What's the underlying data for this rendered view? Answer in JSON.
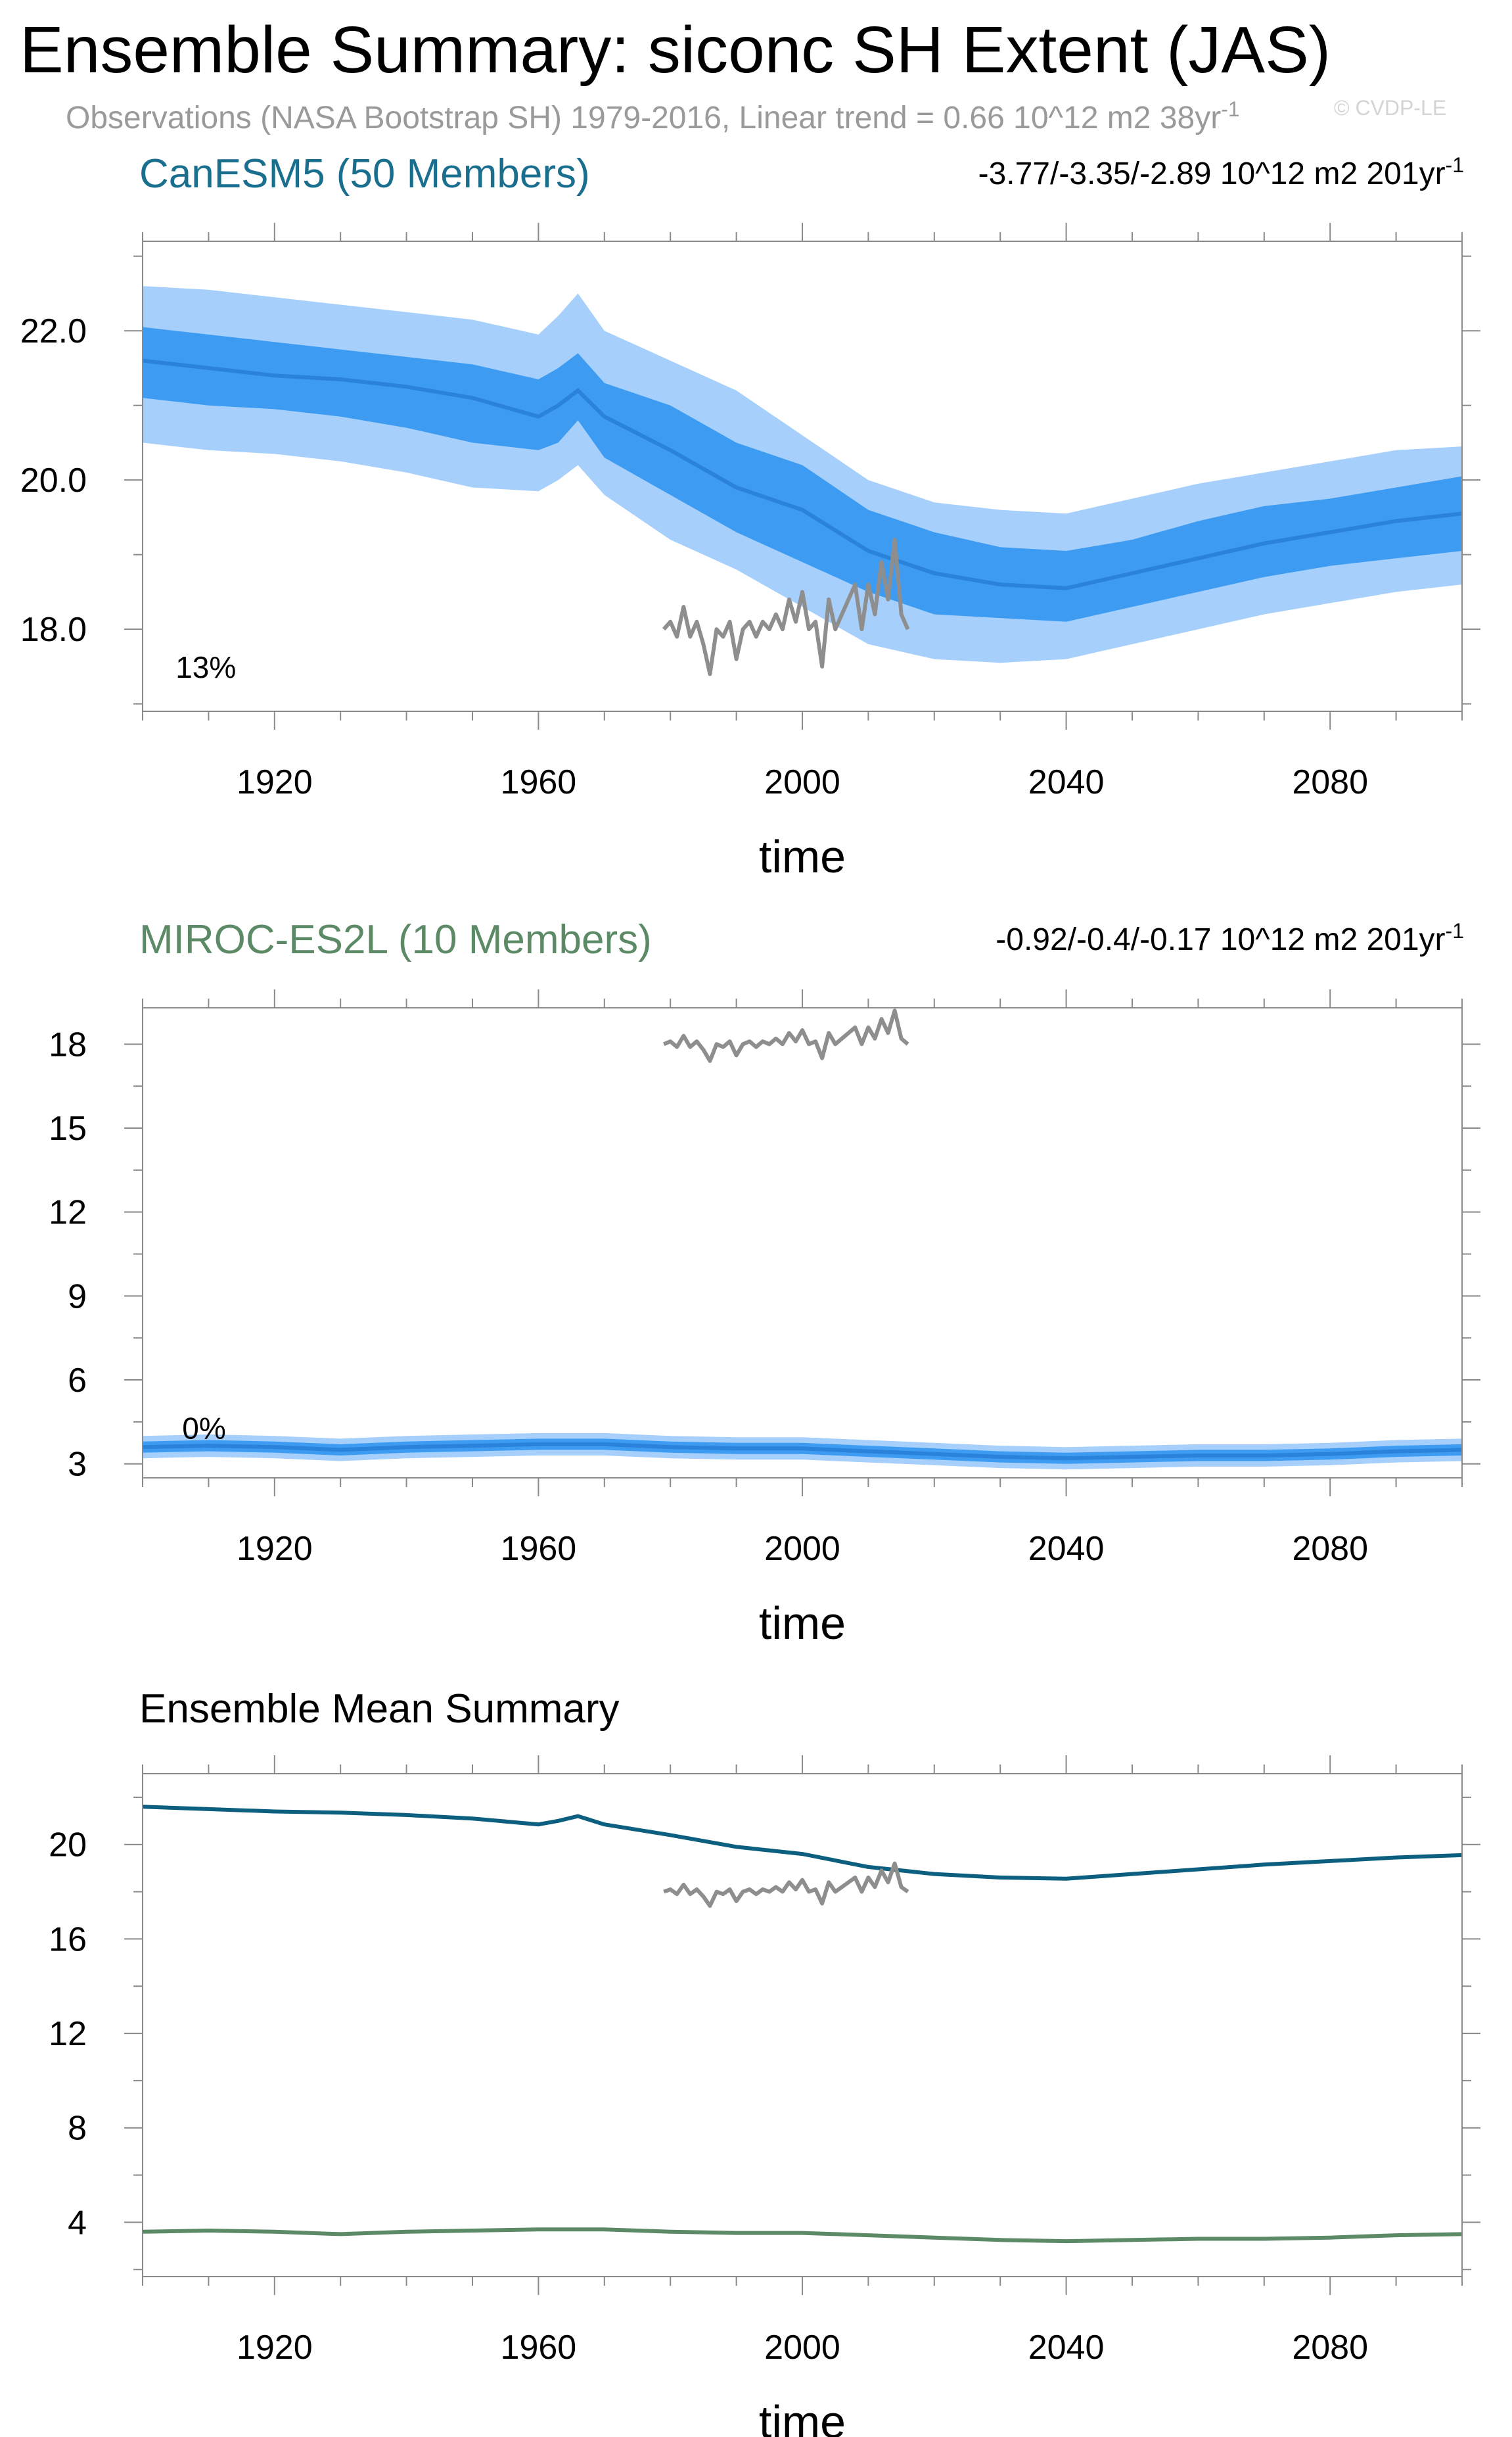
{
  "title": "Ensemble Summary: siconc SH Extent (JAS)",
  "subtitle": "Observations (NASA Bootstrap SH) 1979-2016, Linear trend = 0.66 10^12 m2 38yr",
  "subtitle_sup": "-1",
  "watermark": "© CVDP-LE",
  "colors": {
    "canesm5_title": "#1a6e8e",
    "miroc_title": "#5d8a66",
    "band_outer": "#a6d0fb",
    "band_inner": "#3d9cf2",
    "member_mean": "#2a82d9",
    "obs": "#8e8e8e",
    "canesm5_mean": "#0d5f7f",
    "miroc_mean": "#5d8a66"
  },
  "chart_data": [
    {
      "id": "canesm5",
      "type": "area",
      "title": "CanESM5 (50 Members)",
      "trend_label": "-3.77/-3.35/-2.89 10^12 m2 201yr",
      "trend_sup": "-1",
      "percent_label": "13%",
      "xlabel": "time",
      "ylabel": "",
      "xlim": [
        1900,
        2100
      ],
      "ylim": [
        16.9,
        23.2
      ],
      "x_ticks": [
        1920,
        1960,
        2000,
        2040,
        2080
      ],
      "y_ticks": [
        18.0,
        20.0,
        22.0
      ],
      "y_tick_labels": [
        "18.0",
        "20.0",
        "22.0"
      ],
      "ensemble_mean": {
        "x": [
          1900,
          1910,
          1920,
          1930,
          1940,
          1950,
          1960,
          1963,
          1966,
          1970,
          1980,
          1990,
          2000,
          2010,
          2020,
          2030,
          2040,
          2050,
          2060,
          2070,
          2080,
          2090,
          2100
        ],
        "values": [
          21.6,
          21.5,
          21.4,
          21.35,
          21.25,
          21.1,
          20.85,
          21.0,
          21.2,
          20.85,
          20.4,
          19.9,
          19.6,
          19.05,
          18.75,
          18.6,
          18.55,
          18.75,
          18.95,
          19.15,
          19.3,
          19.45,
          19.55
        ]
      },
      "spread_inner": {
        "x": [
          1900,
          1910,
          1920,
          1930,
          1940,
          1950,
          1960,
          1963,
          1966,
          1970,
          1980,
          1990,
          2000,
          2010,
          2020,
          2030,
          2040,
          2050,
          2060,
          2070,
          2080,
          2090,
          2100
        ],
        "lower": [
          21.1,
          21.0,
          20.95,
          20.85,
          20.7,
          20.5,
          20.4,
          20.5,
          20.8,
          20.3,
          19.8,
          19.3,
          18.9,
          18.5,
          18.2,
          18.15,
          18.1,
          18.3,
          18.5,
          18.7,
          18.85,
          18.95,
          19.05
        ],
        "upper": [
          22.05,
          21.95,
          21.85,
          21.75,
          21.65,
          21.55,
          21.35,
          21.5,
          21.7,
          21.3,
          21.0,
          20.5,
          20.2,
          19.6,
          19.3,
          19.1,
          19.05,
          19.2,
          19.45,
          19.65,
          19.75,
          19.9,
          20.05
        ]
      },
      "spread_outer": {
        "x": [
          1900,
          1910,
          1920,
          1930,
          1940,
          1950,
          1960,
          1963,
          1966,
          1970,
          1980,
          1990,
          2000,
          2010,
          2020,
          2030,
          2040,
          2050,
          2060,
          2070,
          2080,
          2090,
          2100
        ],
        "lower": [
          20.5,
          20.4,
          20.35,
          20.25,
          20.1,
          19.9,
          19.85,
          20.0,
          20.2,
          19.8,
          19.2,
          18.8,
          18.3,
          17.8,
          17.6,
          17.55,
          17.6,
          17.8,
          18.0,
          18.2,
          18.35,
          18.5,
          18.6
        ],
        "upper": [
          22.6,
          22.55,
          22.45,
          22.35,
          22.25,
          22.15,
          21.95,
          22.2,
          22.5,
          22.0,
          21.6,
          21.2,
          20.6,
          20.0,
          19.7,
          19.6,
          19.55,
          19.75,
          19.95,
          20.1,
          20.25,
          20.4,
          20.45
        ]
      },
      "observations": {
        "name": "",
        "x": [
          1979,
          1980,
          1981,
          1982,
          1983,
          1984,
          1985,
          1986,
          1987,
          1988,
          1989,
          1990,
          1991,
          1992,
          1993,
          1994,
          1995,
          1996,
          1997,
          1998,
          1999,
          2000,
          2001,
          2002,
          2003,
          2004,
          2005,
          2006,
          2007,
          2008,
          2009,
          2010,
          2011,
          2012,
          2013,
          2014,
          2015,
          2016
        ],
        "values": [
          18.0,
          18.1,
          17.9,
          18.3,
          17.9,
          18.1,
          17.8,
          17.4,
          18.0,
          17.9,
          18.1,
          17.6,
          18.0,
          18.1,
          17.9,
          18.1,
          18.0,
          18.2,
          18.0,
          18.4,
          18.1,
          18.5,
          18.0,
          18.1,
          17.5,
          18.4,
          18.0,
          18.2,
          18.4,
          18.6,
          18.0,
          18.6,
          18.2,
          18.9,
          18.4,
          19.2,
          18.2,
          18.0
        ]
      }
    },
    {
      "id": "miroc",
      "type": "area",
      "title": "MIROC-ES2L (10 Members)",
      "trend_label": "-0.92/-0.4/-0.17 10^12 m2 201yr",
      "trend_sup": "-1",
      "percent_label": "0%",
      "xlabel": "time",
      "ylabel": "",
      "xlim": [
        1900,
        2100
      ],
      "ylim": [
        2.5,
        19.3
      ],
      "x_ticks": [
        1920,
        1960,
        2000,
        2040,
        2080
      ],
      "y_ticks": [
        3,
        6,
        9,
        12,
        15,
        18
      ],
      "y_tick_labels": [
        "3",
        "6",
        "9",
        "12",
        "15",
        "18"
      ],
      "ensemble_mean": {
        "x": [
          1900,
          1910,
          1920,
          1930,
          1940,
          1950,
          1960,
          1970,
          1980,
          1990,
          2000,
          2010,
          2020,
          2030,
          2040,
          2050,
          2060,
          2070,
          2080,
          2090,
          2100
        ],
        "values": [
          3.6,
          3.65,
          3.6,
          3.5,
          3.6,
          3.65,
          3.7,
          3.7,
          3.6,
          3.55,
          3.55,
          3.45,
          3.35,
          3.25,
          3.2,
          3.25,
          3.3,
          3.3,
          3.35,
          3.45,
          3.5
        ]
      },
      "spread_inner": {
        "x": [
          1900,
          1910,
          1920,
          1930,
          1940,
          1950,
          1960,
          1970,
          1980,
          1990,
          2000,
          2010,
          2020,
          2030,
          2040,
          2050,
          2060,
          2070,
          2080,
          2090,
          2100
        ],
        "lower": [
          3.4,
          3.45,
          3.4,
          3.3,
          3.4,
          3.45,
          3.5,
          3.5,
          3.4,
          3.35,
          3.35,
          3.25,
          3.15,
          3.05,
          3.0,
          3.05,
          3.1,
          3.1,
          3.15,
          3.25,
          3.3
        ],
        "upper": [
          3.8,
          3.85,
          3.8,
          3.7,
          3.8,
          3.85,
          3.9,
          3.9,
          3.8,
          3.75,
          3.75,
          3.65,
          3.55,
          3.45,
          3.4,
          3.45,
          3.5,
          3.5,
          3.55,
          3.65,
          3.7
        ]
      },
      "spread_outer": {
        "x": [
          1900,
          1910,
          1920,
          1930,
          1940,
          1950,
          1960,
          1970,
          1980,
          1990,
          2000,
          2010,
          2020,
          2030,
          2040,
          2050,
          2060,
          2070,
          2080,
          2090,
          2100
        ],
        "lower": [
          3.2,
          3.25,
          3.2,
          3.1,
          3.2,
          3.25,
          3.3,
          3.3,
          3.2,
          3.15,
          3.15,
          3.05,
          2.95,
          2.85,
          2.8,
          2.85,
          2.9,
          2.9,
          2.95,
          3.05,
          3.1
        ],
        "upper": [
          4.0,
          4.05,
          4.0,
          3.9,
          4.0,
          4.05,
          4.1,
          4.1,
          4.0,
          3.95,
          3.95,
          3.85,
          3.75,
          3.65,
          3.6,
          3.65,
          3.7,
          3.7,
          3.75,
          3.85,
          3.9
        ]
      },
      "observations": {
        "name": "",
        "x": [
          1979,
          1980,
          1981,
          1982,
          1983,
          1984,
          1985,
          1986,
          1987,
          1988,
          1989,
          1990,
          1991,
          1992,
          1993,
          1994,
          1995,
          1996,
          1997,
          1998,
          1999,
          2000,
          2001,
          2002,
          2003,
          2004,
          2005,
          2006,
          2007,
          2008,
          2009,
          2010,
          2011,
          2012,
          2013,
          2014,
          2015,
          2016
        ],
        "values": [
          18.0,
          18.1,
          17.9,
          18.3,
          17.9,
          18.1,
          17.8,
          17.4,
          18.0,
          17.9,
          18.1,
          17.6,
          18.0,
          18.1,
          17.9,
          18.1,
          18.0,
          18.2,
          18.0,
          18.4,
          18.1,
          18.5,
          18.0,
          18.1,
          17.5,
          18.4,
          18.0,
          18.2,
          18.4,
          18.6,
          18.0,
          18.6,
          18.2,
          18.9,
          18.4,
          19.2,
          18.2,
          18.0
        ]
      }
    },
    {
      "id": "ensmean",
      "type": "line",
      "title": "Ensemble Mean Summary",
      "xlabel": "time",
      "ylabel": "",
      "xlim": [
        1900,
        2100
      ],
      "ylim": [
        1.7,
        23.0
      ],
      "x_ticks": [
        1920,
        1960,
        2000,
        2040,
        2080
      ],
      "y_ticks": [
        4,
        8,
        12,
        16,
        20
      ],
      "y_tick_labels": [
        "4",
        "8",
        "12",
        "16",
        "20"
      ],
      "series": [
        {
          "key": "canesm5",
          "name": "",
          "x": [
            1900,
            1910,
            1920,
            1930,
            1940,
            1950,
            1960,
            1963,
            1966,
            1970,
            1980,
            1990,
            2000,
            2010,
            2020,
            2030,
            2040,
            2050,
            2060,
            2070,
            2080,
            2090,
            2100
          ],
          "values": [
            21.6,
            21.5,
            21.4,
            21.35,
            21.25,
            21.1,
            20.85,
            21.0,
            21.2,
            20.85,
            20.4,
            19.9,
            19.6,
            19.05,
            18.75,
            18.6,
            18.55,
            18.75,
            18.95,
            19.15,
            19.3,
            19.45,
            19.55
          ]
        },
        {
          "key": "miroc",
          "name": "",
          "x": [
            1900,
            1910,
            1920,
            1930,
            1940,
            1950,
            1960,
            1970,
            1980,
            1990,
            2000,
            2010,
            2020,
            2030,
            2040,
            2050,
            2060,
            2070,
            2080,
            2090,
            2100
          ],
          "values": [
            3.6,
            3.65,
            3.6,
            3.5,
            3.6,
            3.65,
            3.7,
            3.7,
            3.6,
            3.55,
            3.55,
            3.45,
            3.35,
            3.25,
            3.2,
            3.25,
            3.3,
            3.3,
            3.35,
            3.45,
            3.5
          ]
        },
        {
          "key": "obs",
          "name": "",
          "x": [
            1979,
            1980,
            1981,
            1982,
            1983,
            1984,
            1985,
            1986,
            1987,
            1988,
            1989,
            1990,
            1991,
            1992,
            1993,
            1994,
            1995,
            1996,
            1997,
            1998,
            1999,
            2000,
            2001,
            2002,
            2003,
            2004,
            2005,
            2006,
            2007,
            2008,
            2009,
            2010,
            2011,
            2012,
            2013,
            2014,
            2015,
            2016
          ],
          "values": [
            18.0,
            18.1,
            17.9,
            18.3,
            17.9,
            18.1,
            17.8,
            17.4,
            18.0,
            17.9,
            18.1,
            17.6,
            18.0,
            18.1,
            17.9,
            18.1,
            18.0,
            18.2,
            18.0,
            18.4,
            18.1,
            18.5,
            18.0,
            18.1,
            17.5,
            18.4,
            18.0,
            18.2,
            18.4,
            18.6,
            18.0,
            18.6,
            18.2,
            18.9,
            18.4,
            19.2,
            18.2,
            18.0
          ]
        }
      ]
    }
  ]
}
